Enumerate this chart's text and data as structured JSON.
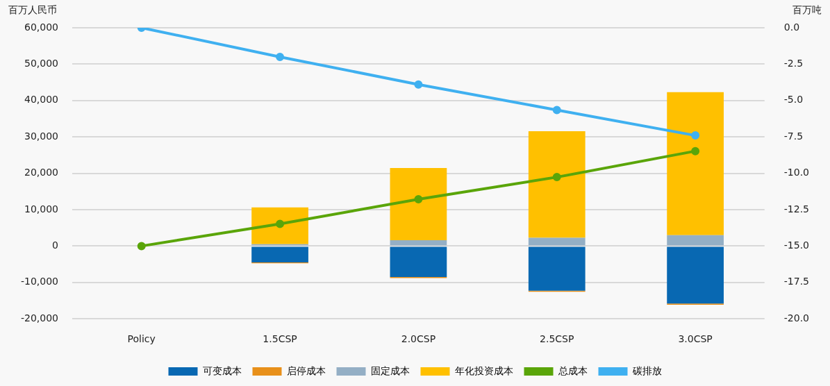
{
  "chart_data": {
    "type": "bar",
    "stacked": true,
    "ylabel": "百万人民币",
    "y2label": "百万吨",
    "categories": [
      "Policy",
      "1.5CSP",
      "2.0CSP",
      "2.5CSP",
      "3.0CSP"
    ],
    "series": [
      {
        "name": "可变成本",
        "color": "#0868b2",
        "values": [
          0,
          -4500,
          -8500,
          -12300,
          -15800
        ]
      },
      {
        "name": "启停成本",
        "color": "#e8901a",
        "values": [
          0,
          -250,
          -300,
          -250,
          -350
        ]
      },
      {
        "name": "固定成本",
        "color": "#94afc5",
        "values": [
          0,
          500,
          1600,
          2250,
          3000
        ]
      },
      {
        "name": "年化投资成本",
        "color": "#ffc000",
        "values": [
          0,
          10100,
          19850,
          29300,
          39300
        ]
      },
      {
        "name": "总成本",
        "type": "line",
        "color": "#5aa509",
        "values": [
          0,
          6100,
          12850,
          18950,
          26100
        ]
      },
      {
        "name": "碳排放",
        "type": "line",
        "axis": "y2",
        "color": "#3fb0f0",
        "values": [
          0,
          -2.0,
          -3.9,
          -5.65,
          -7.4
        ]
      }
    ],
    "ylim": [
      -20000,
      60000
    ],
    "yticks": [
      {
        "value": -20000,
        "label": "-20,000"
      },
      {
        "value": -10000,
        "label": "-10,000"
      },
      {
        "value": 0,
        "label": "0"
      },
      {
        "value": 10000,
        "label": "10,000"
      },
      {
        "value": 20000,
        "label": "20,000"
      },
      {
        "value": 30000,
        "label": "30,000"
      },
      {
        "value": 40000,
        "label": "40,000"
      },
      {
        "value": 50000,
        "label": "50,000"
      },
      {
        "value": 60000,
        "label": "60,000"
      }
    ],
    "y2lim": [
      -20,
      0
    ],
    "y2ticks": [
      {
        "value": -20,
        "label": "-20.0"
      },
      {
        "value": -17.5,
        "label": "-17.5"
      },
      {
        "value": -15,
        "label": "-15.0"
      },
      {
        "value": -12.5,
        "label": "-12.5"
      },
      {
        "value": -10,
        "label": "-10.0"
      },
      {
        "value": -7.5,
        "label": "-7.5"
      },
      {
        "value": -5,
        "label": "-5.0"
      },
      {
        "value": -2.5,
        "label": "-2.5"
      },
      {
        "value": 0,
        "label": "0.0"
      }
    ],
    "grid": "y",
    "legend": "bottom",
    "marker": "circle",
    "line_style": "solid"
  }
}
